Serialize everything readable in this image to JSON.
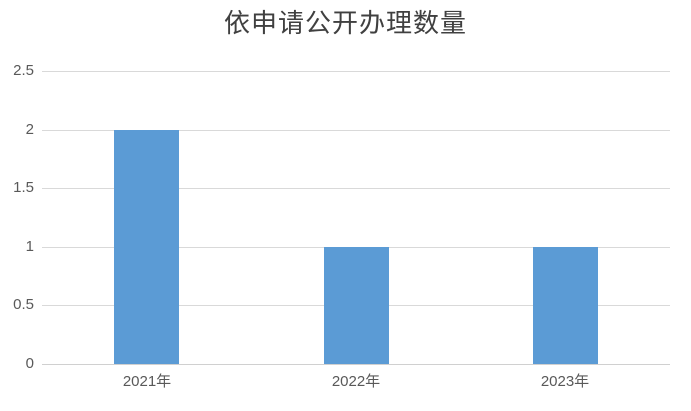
{
  "chart_data": {
    "type": "bar",
    "title": "依申请公开办理数量",
    "categories": [
      "2021年",
      "2022年",
      "2023年"
    ],
    "values": [
      2,
      1,
      1
    ],
    "xlabel": "",
    "ylabel": "",
    "ylim": [
      0,
      2.5
    ],
    "yticks": [
      0,
      0.5,
      1,
      1.5,
      2,
      2.5
    ],
    "grid": "horizontal",
    "legend": "none",
    "colors": {
      "bar": "#5B9BD5",
      "gridline": "#D9D9D9",
      "axis_line": "#D0D0D0",
      "tick_label": "#595959",
      "title": "#404040",
      "background": "#FFFFFF"
    }
  }
}
